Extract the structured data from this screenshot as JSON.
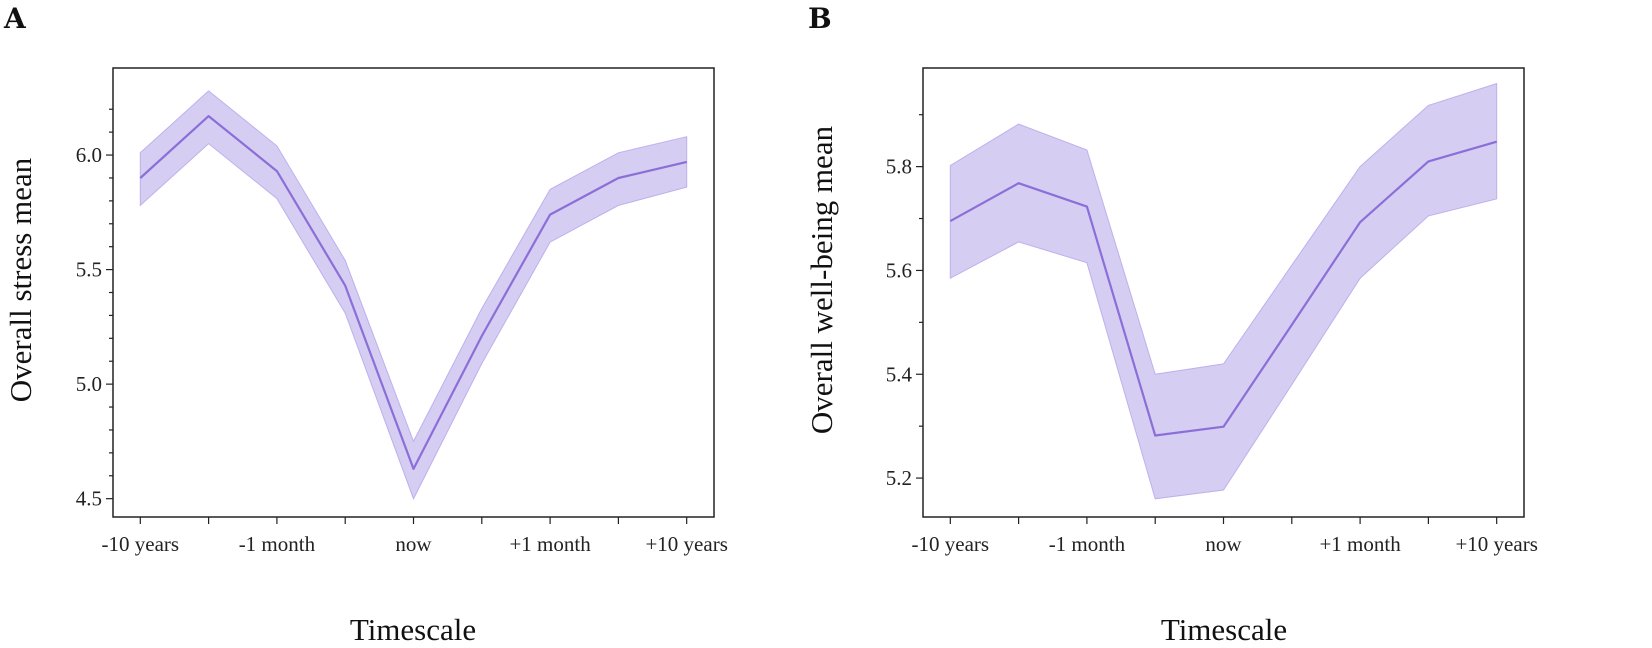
{
  "colors": {
    "band": "#cbbff0",
    "line": "#8b6fd8",
    "axis": "#222222"
  },
  "chart_data": [
    {
      "type": "line",
      "panel_label": "A",
      "title": "",
      "xlabel": "Timescale",
      "ylabel": "Overall stress mean",
      "x": [
        0,
        1,
        2,
        3,
        4,
        5,
        6,
        7,
        8
      ],
      "xticks": [
        {
          "label": "-10 years"
        },
        {
          "label": ""
        },
        {
          "label": "-1 month"
        },
        {
          "label": ""
        },
        {
          "label": "now"
        },
        {
          "label": ""
        },
        {
          "label": "+1 month"
        },
        {
          "label": ""
        },
        {
          "label": "+10 years"
        }
      ],
      "yticks": [
        {
          "value": 4.5,
          "label": "4.5"
        },
        {
          "value": 5.0,
          "label": "5.0"
        },
        {
          "value": 5.5,
          "label": "5.5"
        },
        {
          "value": 6.0,
          "label": "6.0"
        }
      ],
      "yminor": [
        4.6,
        4.7,
        4.8,
        4.9,
        5.1,
        5.2,
        5.3,
        5.4,
        5.6,
        5.7,
        5.8,
        5.9,
        6.1,
        6.2
      ],
      "ylim": [
        4.42,
        6.38
      ],
      "xlim": [
        -0.4,
        8.4
      ],
      "series": [
        {
          "name": "Overall stress mean",
          "values": [
            5.9,
            6.17,
            5.93,
            5.43,
            4.63,
            5.21,
            5.74,
            5.9,
            5.97
          ],
          "lower": [
            5.78,
            6.05,
            5.81,
            5.31,
            4.5,
            5.09,
            5.62,
            5.78,
            5.86
          ],
          "upper": [
            6.01,
            6.28,
            6.04,
            5.54,
            4.75,
            5.33,
            5.85,
            6.01,
            6.08
          ]
        }
      ]
    },
    {
      "type": "line",
      "panel_label": "B",
      "title": "",
      "xlabel": "Timescale",
      "ylabel": "Overall well-being mean",
      "x": [
        0,
        1,
        2,
        3,
        4,
        5,
        6,
        7,
        8
      ],
      "xticks": [
        {
          "label": "-10 years"
        },
        {
          "label": ""
        },
        {
          "label": "-1 month"
        },
        {
          "label": ""
        },
        {
          "label": "now"
        },
        {
          "label": ""
        },
        {
          "label": "+1 month"
        },
        {
          "label": ""
        },
        {
          "label": "+10 years"
        }
      ],
      "yticks": [
        {
          "value": 5.2,
          "label": "5.2"
        },
        {
          "value": 5.4,
          "label": "5.4"
        },
        {
          "value": 5.6,
          "label": "5.6"
        },
        {
          "value": 5.8,
          "label": "5.8"
        }
      ],
      "yminor": [
        5.3,
        5.5,
        5.7,
        5.9
      ],
      "ylim": [
        5.125,
        5.99
      ],
      "xlim": [
        -0.4,
        8.4
      ],
      "series": [
        {
          "name": "Overall well-being mean",
          "values": [
            5.695,
            5.768,
            5.723,
            5.282,
            5.299,
            5.495,
            5.693,
            5.81,
            5.848
          ],
          "lower": [
            5.585,
            5.655,
            5.615,
            5.16,
            5.177,
            5.38,
            5.585,
            5.705,
            5.738
          ],
          "upper": [
            5.802,
            5.882,
            5.832,
            5.4,
            5.42,
            5.61,
            5.8,
            5.918,
            5.96
          ]
        }
      ]
    }
  ]
}
